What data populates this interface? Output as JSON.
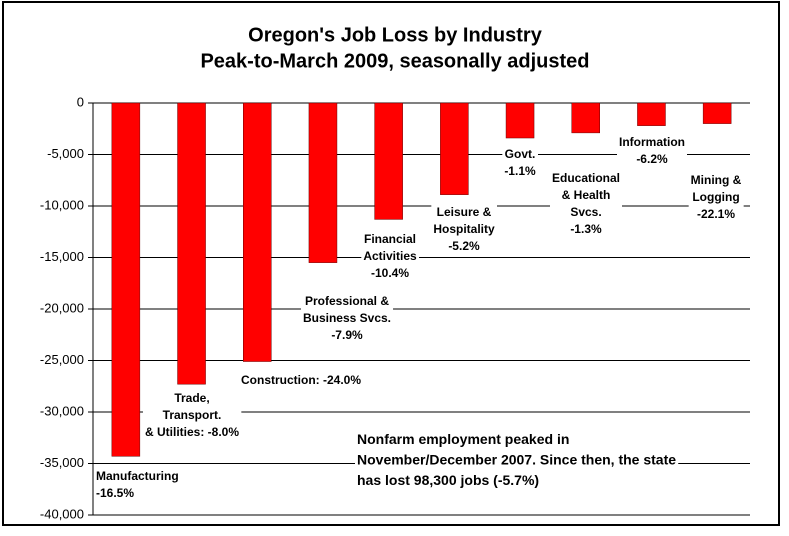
{
  "chart_data": {
    "type": "bar",
    "title": "Oregon's Job Loss by Industry",
    "subtitle": "Peak-to-March 2009, seasonally adjusted",
    "categories": [
      "Manufacturing\n-16.5%",
      "Trade,\nTransport.\n& Utilities: -8.0%",
      "Construction: -24.0%",
      "Professional &\nBusiness Svcs.\n-7.9%",
      "Financial\nActivities\n-10.4%",
      "Leisure &\nHospitality\n-5.2%",
      "Govt.\n-1.1%",
      "Educational\n& Health\nSvcs.\n-1.3%",
      "Information\n-6.2%",
      "Mining &\nLogging\n-22.1%"
    ],
    "values": [
      -34300,
      -27300,
      -25100,
      -15500,
      -11300,
      -8900,
      -3400,
      -2900,
      -2200,
      -2000
    ],
    "color": "#ff0000",
    "ylim": [
      -40000,
      0
    ],
    "yticks": [
      {
        "value": 0,
        "label": "0"
      },
      {
        "value": -5000,
        "label": "-5,000"
      },
      {
        "value": -10000,
        "label": "-10,000"
      },
      {
        "value": -15000,
        "label": "-15,000"
      },
      {
        "value": -20000,
        "label": "-20,000"
      },
      {
        "value": -25000,
        "label": "-25,000"
      },
      {
        "value": -30000,
        "label": "-30,000"
      },
      {
        "value": -35000,
        "label": "-35,000"
      },
      {
        "value": -40000,
        "label": "-40,000"
      }
    ],
    "grid": true,
    "annotation": "Nonfarm employment peaked in\nNovember/December 2007. Since then, the state\nhas lost 98,300 jobs (-5.7%)"
  }
}
